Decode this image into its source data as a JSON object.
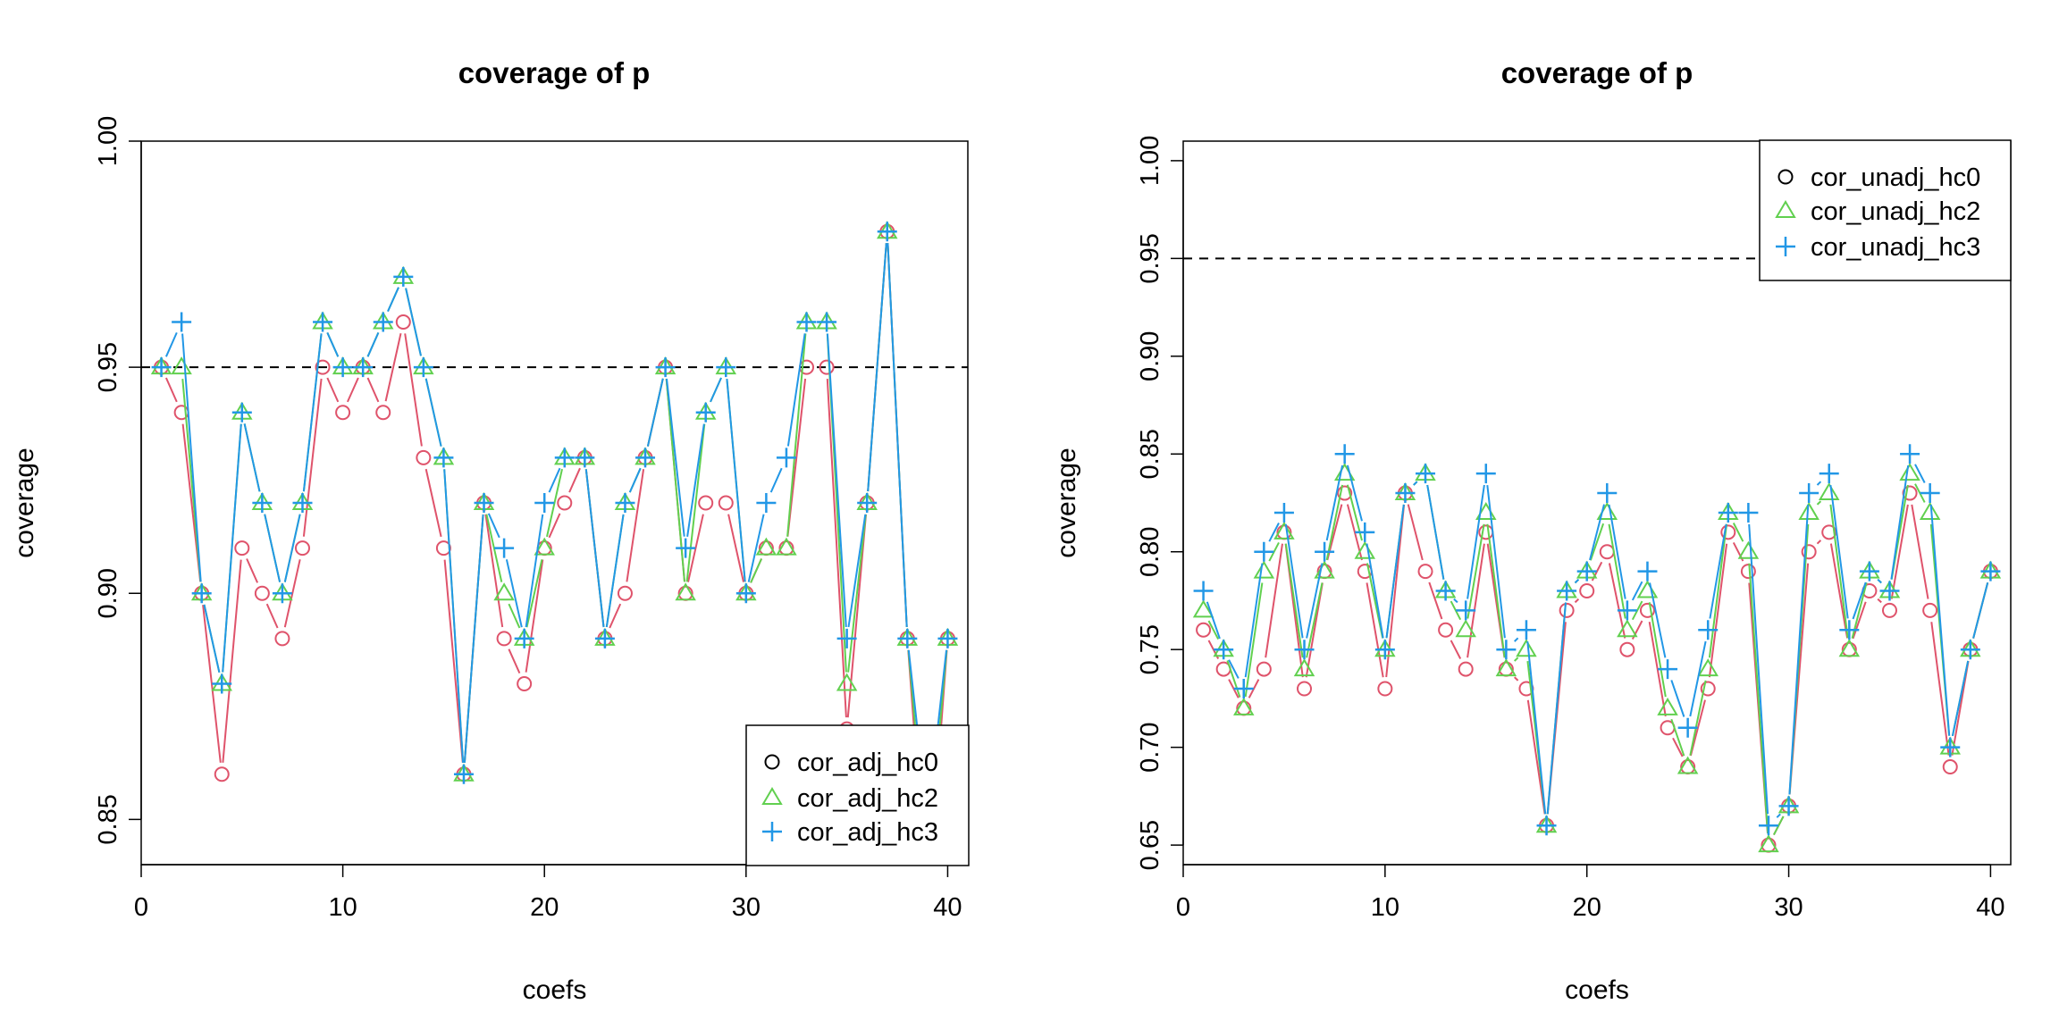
{
  "chart_data": [
    {
      "type": "line",
      "title": "coverage of p",
      "xlabel": "coefs",
      "ylabel": "coverage",
      "xlim": [
        0,
        41
      ],
      "ylim": [
        0.84,
        1.0
      ],
      "xticks": [
        0,
        10,
        20,
        30,
        40
      ],
      "yticks": [
        0.85,
        0.9,
        0.95,
        1.0
      ],
      "ytick_labels": [
        "0.85",
        "0.90",
        "0.95",
        "1.00"
      ],
      "reference_line": 0.95,
      "legend_position": "bottom-right",
      "x": [
        1,
        2,
        3,
        4,
        5,
        6,
        7,
        8,
        9,
        10,
        11,
        12,
        13,
        14,
        15,
        16,
        17,
        18,
        19,
        20,
        21,
        22,
        23,
        24,
        25,
        26,
        27,
        28,
        29,
        30,
        31,
        32,
        33,
        34,
        35,
        36,
        37,
        38,
        39,
        40
      ],
      "series": [
        {
          "name": "cor_adj_hc0",
          "marker": "circle",
          "color": "#DF536B",
          "values": [
            0.95,
            0.94,
            0.9,
            0.86,
            0.91,
            0.9,
            0.89,
            0.91,
            0.95,
            0.94,
            0.95,
            0.94,
            0.96,
            0.93,
            0.91,
            0.86,
            0.92,
            0.89,
            0.88,
            0.91,
            0.92,
            0.93,
            0.89,
            0.9,
            0.93,
            0.95,
            0.9,
            0.92,
            0.92,
            0.9,
            0.91,
            0.91,
            0.95,
            0.95,
            0.87,
            0.92,
            0.98,
            0.89,
            0.83,
            0.89
          ]
        },
        {
          "name": "cor_adj_hc2",
          "marker": "triangle",
          "color": "#61D04F",
          "values": [
            0.95,
            0.95,
            0.9,
            0.88,
            0.94,
            0.92,
            0.9,
            0.92,
            0.96,
            0.95,
            0.95,
            0.96,
            0.97,
            0.95,
            0.93,
            0.86,
            0.92,
            0.9,
            0.89,
            0.91,
            0.93,
            0.93,
            0.89,
            0.92,
            0.93,
            0.95,
            0.9,
            0.94,
            0.95,
            0.9,
            0.91,
            0.91,
            0.96,
            0.96,
            0.88,
            0.92,
            0.98,
            0.89,
            0.84,
            0.89
          ]
        },
        {
          "name": "cor_adj_hc3",
          "marker": "plus",
          "color": "#2297E6",
          "values": [
            0.95,
            0.96,
            0.9,
            0.88,
            0.94,
            0.92,
            0.9,
            0.92,
            0.96,
            0.95,
            0.95,
            0.96,
            0.97,
            0.95,
            0.93,
            0.86,
            0.92,
            0.91,
            0.89,
            0.92,
            0.93,
            0.93,
            0.89,
            0.92,
            0.93,
            0.95,
            0.91,
            0.94,
            0.95,
            0.9,
            0.92,
            0.93,
            0.96,
            0.96,
            0.89,
            0.92,
            0.98,
            0.89,
            0.85,
            0.89
          ]
        }
      ]
    },
    {
      "type": "line",
      "title": "coverage of p",
      "xlabel": "coefs",
      "ylabel": "coverage",
      "xlim": [
        0,
        41
      ],
      "ylim": [
        0.64,
        1.01
      ],
      "xticks": [
        0,
        10,
        20,
        30,
        40
      ],
      "yticks": [
        0.65,
        0.7,
        0.75,
        0.8,
        0.85,
        0.9,
        0.95,
        1.0
      ],
      "ytick_labels": [
        "0.65",
        "0.70",
        "0.75",
        "0.80",
        "0.85",
        "0.90",
        "0.95",
        "1.00"
      ],
      "reference_line": 0.95,
      "legend_position": "top-right",
      "x": [
        1,
        2,
        3,
        4,
        5,
        6,
        7,
        8,
        9,
        10,
        11,
        12,
        13,
        14,
        15,
        16,
        17,
        18,
        19,
        20,
        21,
        22,
        23,
        24,
        25,
        26,
        27,
        28,
        29,
        30,
        31,
        32,
        33,
        34,
        35,
        36,
        37,
        38,
        39,
        40
      ],
      "series": [
        {
          "name": "cor_unadj_hc0",
          "marker": "circle",
          "color": "#DF536B",
          "values": [
            0.76,
            0.74,
            0.72,
            0.74,
            0.81,
            0.73,
            0.79,
            0.83,
            0.79,
            0.73,
            0.83,
            0.79,
            0.76,
            0.74,
            0.81,
            0.74,
            0.73,
            0.66,
            0.77,
            0.78,
            0.8,
            0.75,
            0.77,
            0.71,
            0.69,
            0.73,
            0.81,
            0.79,
            0.65,
            0.67,
            0.8,
            0.81,
            0.75,
            0.78,
            0.77,
            0.83,
            0.77,
            0.69,
            0.75,
            0.79
          ]
        },
        {
          "name": "cor_unadj_hc2",
          "marker": "triangle",
          "color": "#61D04F",
          "values": [
            0.77,
            0.75,
            0.72,
            0.79,
            0.81,
            0.74,
            0.79,
            0.84,
            0.8,
            0.75,
            0.83,
            0.84,
            0.78,
            0.76,
            0.82,
            0.74,
            0.75,
            0.66,
            0.78,
            0.79,
            0.82,
            0.76,
            0.78,
            0.72,
            0.69,
            0.74,
            0.82,
            0.8,
            0.65,
            0.67,
            0.82,
            0.83,
            0.75,
            0.79,
            0.78,
            0.84,
            0.82,
            0.7,
            0.75,
            0.79
          ]
        },
        {
          "name": "cor_unadj_hc3",
          "marker": "plus",
          "color": "#2297E6",
          "values": [
            0.78,
            0.75,
            0.73,
            0.8,
            0.82,
            0.75,
            0.8,
            0.85,
            0.81,
            0.75,
            0.83,
            0.84,
            0.78,
            0.77,
            0.84,
            0.75,
            0.76,
            0.66,
            0.78,
            0.79,
            0.83,
            0.77,
            0.79,
            0.74,
            0.71,
            0.76,
            0.82,
            0.82,
            0.66,
            0.67,
            0.83,
            0.84,
            0.76,
            0.79,
            0.78,
            0.85,
            0.83,
            0.7,
            0.75,
            0.79
          ]
        }
      ]
    }
  ]
}
